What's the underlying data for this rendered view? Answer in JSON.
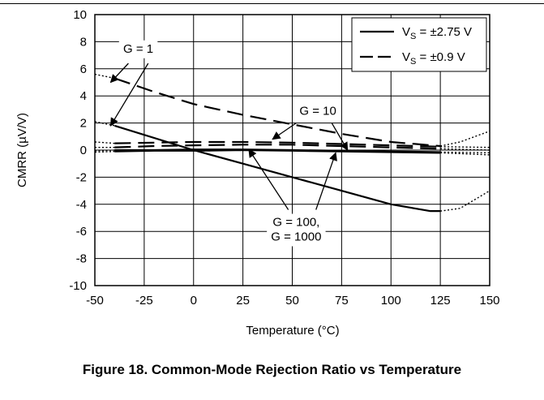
{
  "caption": "Figure 18. Common-Mode Rejection Ratio vs Temperature",
  "chart_data": {
    "type": "line",
    "title": "",
    "xlabel": "Temperature (°C)",
    "ylabel": "CMRR (µV/V)",
    "xlim": [
      -50,
      150
    ],
    "ylim": [
      -10,
      10
    ],
    "xticks": [
      -50,
      -25,
      0,
      25,
      50,
      75,
      100,
      125,
      150
    ],
    "yticks": [
      -10,
      -8,
      -6,
      -4,
      -2,
      0,
      2,
      4,
      6,
      8,
      10
    ],
    "grid": true,
    "legend": {
      "placement": "top-right",
      "entries": [
        {
          "prefix": "V",
          "sub": "S",
          "suffix": " = ±2.75 V",
          "style": "solid"
        },
        {
          "prefix": "V",
          "sub": "S",
          "suffix": " = ±0.9 V",
          "style": "dashed"
        }
      ]
    },
    "series": [
      {
        "style": "solid",
        "x": [
          -40,
          0,
          25,
          50,
          75,
          100,
          120,
          125
        ],
        "y": [
          1.8,
          0.0,
          -1.0,
          -2.0,
          -3.0,
          -4.0,
          -4.5,
          -4.5
        ],
        "ext_left": {
          "x": [
            -50,
            -40
          ],
          "y": [
            2.1,
            1.8
          ]
        },
        "ext_right": {
          "x": [
            125,
            135,
            150
          ],
          "y": [
            -4.5,
            -4.3,
            -3.0
          ]
        }
      },
      {
        "style": "dashed",
        "x": [
          -40,
          -20,
          0,
          25,
          50,
          75,
          100,
          125
        ],
        "y": [
          5.3,
          4.3,
          3.4,
          2.6,
          1.9,
          1.2,
          0.6,
          0.3
        ],
        "ext_left": {
          "x": [
            -50,
            -40
          ],
          "y": [
            5.6,
            5.3
          ]
        },
        "ext_right": {
          "x": [
            125,
            135,
            150
          ],
          "y": [
            0.3,
            0.6,
            1.4
          ]
        }
      },
      {
        "style": "dashed",
        "x": [
          -40,
          -20,
          0,
          25,
          50,
          75,
          100,
          125
        ],
        "y": [
          0.5,
          0.55,
          0.6,
          0.6,
          0.55,
          0.45,
          0.35,
          0.25
        ],
        "ext_left": {
          "x": [
            -50,
            -40
          ],
          "y": [
            0.6,
            0.5
          ]
        },
        "ext_right": {
          "x": [
            125,
            150
          ],
          "y": [
            0.25,
            0.2
          ]
        }
      },
      {
        "style": "dashed",
        "x": [
          -40,
          -20,
          0,
          25,
          50,
          75,
          100,
          125
        ],
        "y": [
          0.2,
          0.3,
          0.35,
          0.4,
          0.4,
          0.3,
          0.2,
          0.1
        ],
        "ext_left": {
          "x": [
            -50,
            -40
          ],
          "y": [
            0.2,
            0.2
          ]
        },
        "ext_right": {
          "x": [
            125,
            150
          ],
          "y": [
            0.1,
            0.0
          ]
        }
      },
      {
        "style": "solid",
        "x": [
          -40,
          -20,
          0,
          25,
          50,
          75,
          100,
          125
        ],
        "y": [
          0.0,
          0.0,
          0.05,
          0.05,
          0.0,
          -0.05,
          -0.1,
          -0.15
        ],
        "ext_left": {
          "x": [
            -50,
            -40
          ],
          "y": [
            -0.05,
            0.0
          ]
        },
        "ext_right": {
          "x": [
            125,
            150
          ],
          "y": [
            -0.15,
            -0.2
          ]
        }
      },
      {
        "style": "solid",
        "x": [
          -40,
          -20,
          0,
          25,
          50,
          75,
          100,
          125
        ],
        "y": [
          -0.1,
          -0.05,
          -0.05,
          0.0,
          -0.05,
          -0.1,
          -0.15,
          -0.2
        ],
        "ext_left": {
          "x": [
            -50,
            -40
          ],
          "y": [
            -0.15,
            -0.1
          ]
        },
        "ext_right": {
          "x": [
            125,
            150
          ],
          "y": [
            -0.2,
            -0.35
          ]
        }
      }
    ],
    "annotations": [
      {
        "lines": [
          "G = 1"
        ],
        "x": -28,
        "y": 7.2,
        "arrows": [
          {
            "from": [
              -33,
              6.4
            ],
            "to": [
              -42,
              5.0
            ]
          },
          {
            "from": [
              -23,
              6.4
            ],
            "to": [
              -42,
              1.8
            ]
          }
        ]
      },
      {
        "lines": [
          "G = 10"
        ],
        "x": 63,
        "y": 2.6,
        "arrows": [
          {
            "from": [
              52,
              2.0
            ],
            "to": [
              40,
              0.8
            ]
          },
          {
            "from": [
              70,
              2.0
            ],
            "to": [
              78,
              0.0
            ]
          }
        ]
      },
      {
        "lines": [
          "G = 100,",
          "G = 1000"
        ],
        "x": 52,
        "y": -5.6,
        "arrows": [
          {
            "from": [
              48,
              -4.4
            ],
            "to": [
              28,
              0.05
            ]
          },
          {
            "from": [
              62,
              -4.4
            ],
            "to": [
              72,
              -0.2
            ]
          }
        ]
      }
    ]
  }
}
